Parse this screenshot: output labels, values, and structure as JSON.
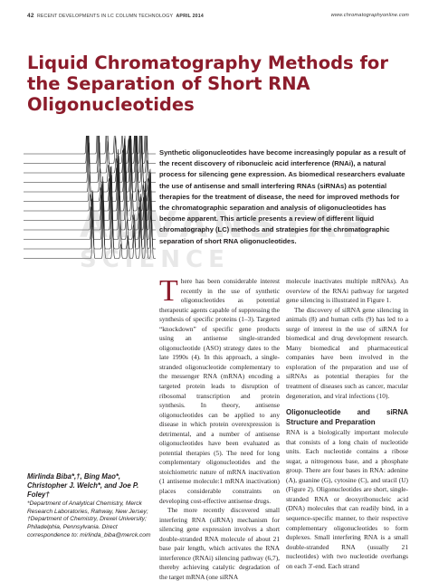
{
  "header": {
    "page_number": "42",
    "section": "RECENT DEVELOPMENTS IN LC COLUMN TECHNOLOGY",
    "issue": "APRIL 2014",
    "website": "www.chromatographyonline.com"
  },
  "title": "Liquid Chromatography Methods for the Separation of Short RNA Oligonucleotides",
  "abstract": "Synthetic oligonucleotides have become increasingly popular as a result of the recent discovery of ribonucleic acid interference (RNAi), a natural process for silencing gene expression. As biomedical researchers evaluate the use of antisense and small interfering RNAs (siRNAs) as potential therapies for the treatment of disease, the need for improved methods for the chromatographic separation and analysis of oligonucleotides has become apparent. This article presents a review of different liquid chromatography (LC) methods and strategies for the chromatographic separation of short RNA oligonucleotides.",
  "watermark": [
    "ADVANSTAR",
    "SCIENCE"
  ],
  "authors": {
    "names": "Mirlinda Biba*,†, Bing Mao*, Christopher J. Welch*, and Joe P. Foley†",
    "affiliations": "*Department of Analytical Chemistry, Merck Research Laboratories, Rahway, New Jersey; †Department of Chemistry, Drexel University; Philadelphia, Pennsylvania. Direct correspondence to: mirlinda_biba@merck.com"
  },
  "body": {
    "column1": {
      "drop_cap": "T",
      "paragraphs": [
        "here has been considerable interest recently in the use of synthetic oligonucleotides as potential therapeutic agents capable of suppressing the synthesis of specific proteins (1–3). Targeted “knockdown” of specific gene products using an antisense single-stranded oligonucleotide (ASO) strategy dates to the late 1990s (4). In this approach, a single-stranded oligonucleotide complementary to the messenger RNA (mRNA) encoding a targeted protein leads to disruption of ribosomal transcription and protein synthesis. In theory, antisense oligonucleotides can be applied to any disease in which protein overexpression is detrimental, and a number of antisense oligonucleotides have been evaluated as potential therapies (5). The need for long complementary oligonucleotides and the stoichiometric nature of mRNA inactivation (1 antisense molecule:1 mRNA inactivation) places considerable constraints on developing cost-effective antisense drugs.",
        "The more recently discovered small interfering RNA (siRNA) mechanism for silencing gene expression involves a short double-stranded RNA molecule of about 21 base pair length, which activates the RNA interference (RNAi) silencing pathway (6,7), thereby achieving catalytic degradation of the target mRNA (one siRNA"
      ]
    },
    "column2": {
      "paragraphs": [
        "molecule inactivates multiple mRNAs). An overview of the RNAi pathway for targeted gene silencing is illustrated in Figure 1.",
        "The discovery of siRNA gene silencing in animals (8) and human cells (9) has led to a surge of interest in the use of siRNA for biomedical and drug development research. Many biomedical and pharmaceutical companies have been involved in the exploration of the preparation and use of siRNAs as potential therapies for the treatment of diseases such as cancer, macular degeneration, and viral infections (10)."
      ],
      "heading": "Oligonucleotide and siRNA Structure and Preparation",
      "paragraphs_after_heading": [
        "RNA is a biologically important molecule that consists of a long chain of nucleotide units. Each nucleotide contains a ribose sugar, a nitrogenous base, and a phosphate group. There are four bases in RNA: adenine (A), guanine (G), cytosine (C), and uracil (U) (Figure 2). Oligonucleotides are short, single-stranded RNA or deoxyribonucleic acid (DNA) molecules that can readily bind, in a sequence-specific manner, to their respective complementary oligonucleotides to form duplexes. Small interfering RNA is a small double-stranded RNA (usually 21 nucleotides) with two nucleotide overhangs on each 3′-end. Each strand"
      ]
    }
  }
}
